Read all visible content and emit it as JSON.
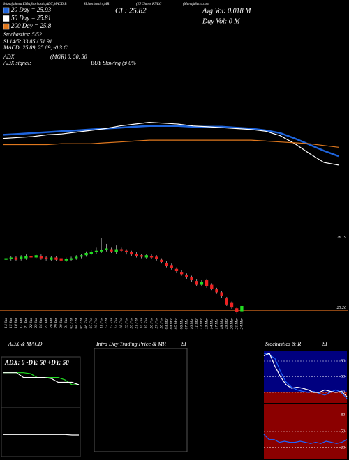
{
  "header": {
    "left": "MunafaSutra EMA,Stochastic,ADX,MACD,B",
    "mid": "SI,Stochastics,MR",
    "chart": "(EJ Charts KNRG",
    "site": "(MunafaSutra.com"
  },
  "info": {
    "cl": "CL: 25.82",
    "avg_vol": "Avg Vol: 0.018  M",
    "day_vol": "Day Vol: 0  M",
    "lines": [
      "Stochastics: 5/52",
      "SI 14/5: 33.85 / 51.91",
      "MACD: 25.89, 25.69, -0.3 C"
    ],
    "adx": "ADX:",
    "adx_signal": "ADX  signal:",
    "mgr": "(MGR) 0,  50,  50",
    "signal": "BUY Slowing @ 0%"
  },
  "panels": [
    "ADX  & MACD",
    "Intra Day Trading Price  & MR",
    "SI",
    "Stochastics & R",
    "SI"
  ],
  "chart_data": [
    {
      "type": "line",
      "ylim": [
        25.4,
        26.3
      ],
      "series": [
        {
          "name": "20 Day = 25.93",
          "color": "#1e64dc",
          "values": [
            25.96,
            25.97,
            25.98,
            25.99,
            26.0,
            26.01,
            26.02,
            26.03,
            26.04,
            26.05,
            26.06,
            26.06,
            26.06,
            26.05,
            26.05,
            26.05,
            26.04,
            26.03,
            26.01,
            25.98,
            25.92,
            25.85,
            25.78,
            25.72
          ]
        },
        {
          "name": "50 Day = 25.81",
          "color": "#ffffff",
          "values": [
            25.92,
            25.93,
            25.94,
            25.96,
            25.97,
            25.99,
            26.01,
            26.03,
            26.06,
            26.08,
            26.1,
            26.09,
            26.08,
            26.06,
            26.05,
            26.04,
            26.03,
            26.02,
            26.0,
            25.95,
            25.86,
            25.75,
            25.65,
            25.62
          ]
        },
        {
          "name": "200 Day = 25.8",
          "color": "#e0781e",
          "values": [
            25.85,
            25.85,
            25.85,
            25.85,
            25.86,
            25.86,
            25.86,
            25.87,
            25.88,
            25.89,
            25.9,
            25.9,
            25.9,
            25.9,
            25.9,
            25.9,
            25.9,
            25.9,
            25.89,
            25.88,
            25.87,
            25.86,
            25.84,
            25.82
          ]
        }
      ]
    },
    {
      "type": "candlestick",
      "ylim": [
        25.2,
        26.25
      ],
      "yticks": [
        26.19,
        25.26
      ],
      "x": [
        "14 Jan",
        "15 Jan",
        "16 Jan",
        "17 Jan",
        "21 Jan",
        "22 Jan",
        "23 Jan",
        "24 Jan",
        "27 Jan",
        "28 Jan",
        "29 Jan",
        "30 Jan",
        "31 Jan",
        "03 Feb",
        "04 Feb",
        "05 Feb",
        "06 Feb",
        "07 Feb",
        "10 Feb",
        "11 Feb",
        "12 Feb",
        "13 Feb",
        "14 Feb",
        "18 Feb",
        "19 Feb",
        "20 Feb",
        "21 Feb",
        "24 Feb",
        "25 Feb",
        "26 Feb",
        "27 Feb",
        "28 Feb",
        "03 Mar",
        "04 Mar",
        "05 Mar",
        "06 Mar",
        "07 Mar",
        "10 Mar",
        "11 Mar",
        "12 Mar",
        "13 Mar",
        "14 Mar",
        "17 Mar",
        "18 Mar",
        "19 Mar",
        "20 Mar",
        "21 Mar",
        "24 Mar"
      ],
      "open": [
        25.93,
        25.94,
        25.96,
        25.94,
        25.95,
        25.98,
        25.96,
        25.98,
        25.96,
        25.93,
        25.96,
        25.95,
        25.92,
        25.93,
        25.95,
        25.97,
        25.99,
        26.01,
        26.03,
        26.04,
        26.06,
        26.07,
        26.03,
        26.07,
        26.05,
        26.03,
        26.01,
        25.99,
        25.96,
        25.98,
        25.97,
        25.93,
        25.89,
        25.86,
        25.81,
        25.77,
        25.73,
        25.7,
        25.65,
        25.6,
        25.66,
        25.6,
        25.54,
        25.5,
        25.42,
        25.36,
        25.29,
        25.25
      ],
      "high": [
        25.97,
        25.98,
        25.98,
        25.99,
        26.0,
        26.0,
        26.01,
        26.0,
        25.98,
        25.98,
        25.98,
        25.97,
        25.96,
        25.97,
        25.99,
        26.01,
        26.04,
        26.06,
        26.09,
        26.22,
        26.14,
        26.09,
        26.12,
        26.09,
        26.07,
        26.05,
        26.03,
        26.01,
        26.01,
        26.0,
        25.99,
        25.95,
        25.91,
        25.88,
        25.83,
        25.79,
        25.75,
        25.72,
        25.67,
        25.66,
        25.68,
        25.62,
        25.56,
        25.52,
        25.44,
        25.38,
        25.31,
        25.36
      ],
      "low": [
        25.91,
        25.92,
        25.91,
        25.92,
        25.93,
        25.94,
        25.94,
        25.93,
        25.92,
        25.91,
        25.91,
        25.9,
        25.9,
        25.91,
        25.93,
        25.95,
        25.97,
        25.99,
        26.01,
        26.02,
        26.04,
        26.02,
        26.01,
        26.03,
        26.0,
        25.98,
        25.96,
        25.95,
        25.94,
        25.94,
        25.92,
        25.88,
        25.83,
        25.8,
        25.76,
        25.72,
        25.68,
        25.64,
        25.58,
        25.58,
        25.56,
        25.53,
        25.48,
        25.43,
        25.32,
        25.28,
        25.22,
        25.23
      ],
      "close": [
        25.95,
        25.96,
        25.93,
        25.97,
        25.98,
        25.96,
        25.99,
        25.95,
        25.94,
        25.96,
        25.93,
        25.92,
        25.94,
        25.95,
        25.97,
        25.99,
        26.02,
        26.03,
        26.05,
        26.06,
        26.08,
        26.04,
        26.07,
        26.05,
        26.03,
        26.0,
        25.98,
        25.97,
        25.99,
        25.96,
        25.94,
        25.9,
        25.85,
        25.82,
        25.78,
        25.74,
        25.7,
        25.66,
        25.6,
        25.64,
        25.58,
        25.55,
        25.5,
        25.45,
        25.34,
        25.3,
        25.24,
        25.32
      ],
      "up_color": "#22dd22",
      "down_color": "#ee2222",
      "line_color": "#8b4513"
    },
    {
      "type": "line",
      "title": "ADX: 0  -DY: 50  +DY: 50",
      "ylim": [
        0,
        100
      ],
      "series": [
        {
          "color": "#22dd22",
          "values": [
            70,
            70,
            70,
            70,
            68,
            60,
            60,
            60,
            60,
            55,
            45,
            45
          ]
        },
        {
          "color": "#ffffff",
          "values": [
            70,
            70,
            70,
            60,
            60,
            60,
            60,
            58,
            50,
            50,
            50,
            45
          ]
        }
      ]
    },
    {
      "type": "line",
      "ylim": [
        0,
        100
      ],
      "series": [
        {
          "color": "#ffffff",
          "values": [
            45,
            45,
            45,
            45,
            45,
            45,
            45,
            45,
            45,
            45,
            44,
            44
          ]
        }
      ]
    },
    {
      "type": "line",
      "ylim": [
        0,
        100
      ],
      "yticks": [
        20,
        50,
        80
      ],
      "background": "#000080",
      "low_color": "#8b0000",
      "series": [
        {
          "color": "#1e64ff",
          "values": [
            95,
            92,
            85,
            60,
            40,
            30,
            25,
            22,
            20,
            22,
            18,
            15,
            20,
            25,
            20,
            8
          ]
        },
        {
          "color": "#ffffff",
          "values": [
            90,
            95,
            70,
            50,
            35,
            28,
            30,
            28,
            25,
            20,
            20,
            25,
            22,
            20,
            22,
            12
          ]
        }
      ]
    },
    {
      "type": "line",
      "ylim": [
        0,
        100
      ],
      "yticks": [
        20,
        50,
        80
      ],
      "background": "#8b0000",
      "series": [
        {
          "color": "#1e64ff",
          "values": [
            45,
            35,
            35,
            30,
            32,
            30,
            30,
            32,
            30,
            28,
            30,
            28,
            32,
            30,
            28,
            30,
            35
          ]
        }
      ]
    }
  ]
}
